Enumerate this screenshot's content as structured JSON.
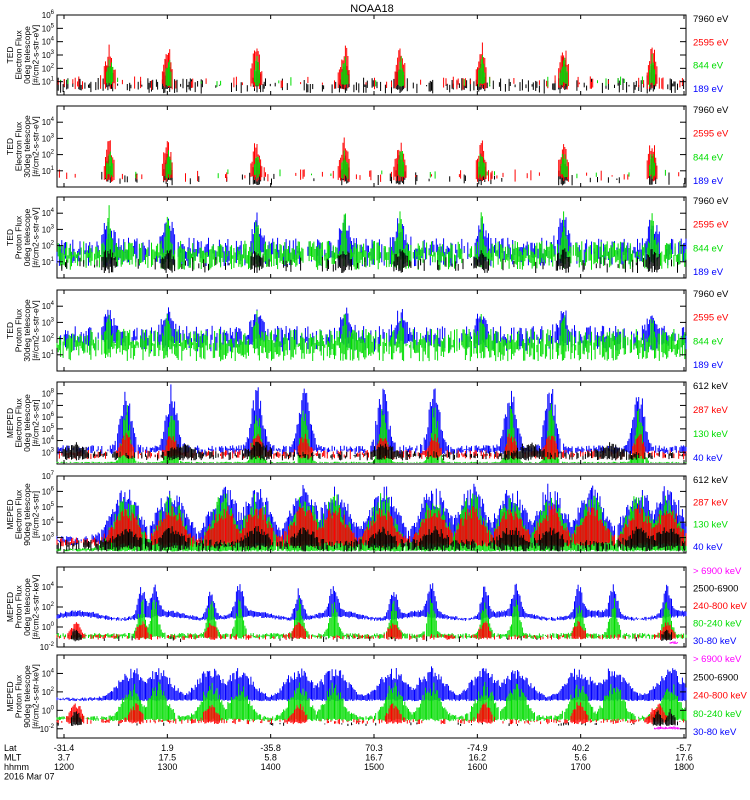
{
  "figure": {
    "title": "NOAA18",
    "footer": {
      "row_labels": [
        "Lat",
        "MLT",
        "hhmm"
      ],
      "date": "2016 Mar 07",
      "columns": [
        {
          "lat": "-31.4",
          "mlt": "3.7",
          "hhmm": "1200"
        },
        {
          "lat": "1.9",
          "mlt": "17.5",
          "hhmm": "1300"
        },
        {
          "lat": "-35.8",
          "mlt": "5.8",
          "hhmm": "1400"
        },
        {
          "lat": "70.3",
          "mlt": "16.7",
          "hhmm": "1500"
        },
        {
          "lat": "-74.9",
          "mlt": "16.2",
          "hhmm": "1600"
        },
        {
          "lat": "40.2",
          "mlt": "5.6",
          "hhmm": "1700"
        },
        {
          "lat": "-5.7",
          "mlt": "17.6",
          "hhmm": "1800"
        }
      ]
    }
  },
  "chart_data": [
    {
      "type": "scatter",
      "ylabel": [
        "TED",
        "Electron Flux",
        "0deg telescope",
        "[#/cm2-s-str-eV]"
      ],
      "yscale": "log",
      "ylim_exp": [
        0,
        6
      ],
      "tick_exps": [
        1,
        2,
        3,
        4,
        5,
        6
      ],
      "legend": [
        {
          "label": "7960 eV",
          "color": "#000000"
        },
        {
          "label": "2595 eV",
          "color": "#ff0000"
        },
        {
          "label": "844 eV",
          "color": "#00dd00"
        },
        {
          "label": "189 eV",
          "color": "#0000ff"
        }
      ],
      "series": [
        {
          "color": "#000000",
          "base": 0.7,
          "jitter": 0.6,
          "peak": 2.4,
          "pw": 0.006,
          "fill": 0.35,
          "spikes": [
            0.082,
            0.176,
            0.318,
            0.458,
            0.546,
            0.675,
            0.805,
            0.947
          ]
        },
        {
          "color": "#ff0000",
          "base": 0.9,
          "jitter": 0.5,
          "peak": 3.6,
          "pw": 0.008,
          "fill": 0.12,
          "spikes": [
            0.083,
            0.176,
            0.317,
            0.457,
            0.546,
            0.675,
            0.805,
            0.946
          ]
        },
        {
          "color": "#00dd00",
          "base": 1.0,
          "jitter": 0.4,
          "peak": 2.8,
          "pw": 0.005,
          "fill": 0.04,
          "spikes": [
            0.084,
            0.177,
            0.318,
            0.457,
            0.547,
            0.675,
            0.806,
            0.946
          ]
        }
      ]
    },
    {
      "type": "scatter",
      "ylabel": [
        "TED",
        "Electron Flux",
        "30deg telescope",
        "[#/cm2-s-str-eV]"
      ],
      "yscale": "log",
      "ylim_exp": [
        0,
        5
      ],
      "tick_exps": [
        1,
        2,
        3,
        4
      ],
      "legend": [
        {
          "label": "7960 eV",
          "color": "#000000"
        },
        {
          "label": "2595 eV",
          "color": "#ff0000"
        },
        {
          "label": "844 eV",
          "color": "#00dd00"
        },
        {
          "label": "189 eV",
          "color": "#0000ff"
        }
      ],
      "series": [
        {
          "color": "#000000",
          "base": 0.5,
          "jitter": 0.4,
          "peak": 2.0,
          "pw": 0.006,
          "fill": 0.1,
          "spikes": [
            0.082,
            0.176,
            0.318,
            0.458,
            0.546,
            0.675,
            0.805,
            0.947
          ]
        },
        {
          "color": "#ff0000",
          "base": 0.7,
          "jitter": 0.4,
          "peak": 2.8,
          "pw": 0.008,
          "fill": 0.08,
          "spikes": [
            0.083,
            0.176,
            0.317,
            0.457,
            0.546,
            0.675,
            0.805,
            0.946
          ]
        },
        {
          "color": "#00dd00",
          "base": 0.8,
          "jitter": 0.3,
          "peak": 2.2,
          "pw": 0.005,
          "fill": 0.03,
          "spikes": [
            0.084,
            0.177,
            0.318,
            0.457,
            0.547,
            0.675,
            0.806,
            0.946
          ]
        }
      ]
    },
    {
      "type": "scatter",
      "ylabel": [
        "TED",
        "Proton Flux",
        "0deg telescope",
        "[#/cm2-s-str-eV]"
      ],
      "yscale": "log",
      "ylim_exp": [
        0,
        5
      ],
      "tick_exps": [
        1,
        2,
        3,
        4
      ],
      "legend": [
        {
          "label": "7960 eV",
          "color": "#000000"
        },
        {
          "label": "2595 eV",
          "color": "#ff0000"
        },
        {
          "label": "844 eV",
          "color": "#00dd00"
        },
        {
          "label": "189 eV",
          "color": "#0000ff"
        }
      ],
      "series": [
        {
          "color": "#0000ff",
          "base": 1.6,
          "jitter": 0.9,
          "peak": 3.3,
          "pw": 0.01,
          "fill": 0.55,
          "spikes": [
            0.082,
            0.176,
            0.318,
            0.458,
            0.546,
            0.675,
            0.805,
            0.947
          ]
        },
        {
          "color": "#00dd00",
          "base": 1.4,
          "jitter": 0.9,
          "peak": 3.8,
          "pw": 0.004,
          "fill": 0.85,
          "spikes": [
            0.083,
            0.176,
            0.317,
            0.457,
            0.546,
            0.675,
            0.805,
            0.946
          ]
        },
        {
          "color": "#000000",
          "base": 0.8,
          "jitter": 0.5,
          "peak": 1.5,
          "pw": 0.01,
          "fill": 0.15,
          "spikes": [
            0.082,
            0.176,
            0.318,
            0.458,
            0.546,
            0.675,
            0.805,
            0.947
          ]
        }
      ]
    },
    {
      "type": "scatter",
      "ylabel": [
        "TED",
        "Proton Flux",
        "30deg telescope",
        "[#/cm2-s-str-eV]"
      ],
      "yscale": "log",
      "ylim_exp": [
        0,
        5
      ],
      "tick_exps": [
        1,
        2,
        3,
        4
      ],
      "legend": [
        {
          "label": "7960 eV",
          "color": "#000000"
        },
        {
          "label": "2595 eV",
          "color": "#ff0000"
        },
        {
          "label": "844 eV",
          "color": "#00dd00"
        },
        {
          "label": "189 eV",
          "color": "#0000ff"
        }
      ],
      "series": [
        {
          "color": "#0000ff",
          "base": 2.0,
          "jitter": 0.8,
          "peak": 3.4,
          "pw": 0.01,
          "fill": 0.6,
          "spikes": [
            0.082,
            0.176,
            0.318,
            0.458,
            0.546,
            0.675,
            0.805,
            0.947
          ]
        },
        {
          "color": "#00dd00",
          "base": 1.6,
          "jitter": 1.0,
          "peak": 3.2,
          "pw": 0.004,
          "fill": 0.85,
          "spikes": [
            0.083,
            0.176,
            0.317,
            0.457,
            0.546,
            0.675,
            0.805,
            0.946
          ]
        }
      ]
    },
    {
      "type": "scatter",
      "ylabel": [
        "MEPED",
        "Electron Flux",
        "0deg telescope",
        "[#/cm2-s-str]"
      ],
      "yscale": "log",
      "ylim_exp": [
        2,
        9
      ],
      "tick_exps": [
        3,
        4,
        5,
        6,
        7,
        8
      ],
      "legend": [
        {
          "label": "612 keV",
          "color": "#000000"
        },
        {
          "label": "287 keV",
          "color": "#ff0000"
        },
        {
          "label": "130 keV",
          "color": "#00dd00"
        },
        {
          "label": "40 keV",
          "color": "#0000ff"
        }
      ],
      "series": [
        {
          "color": "#0000ff",
          "base": 3.2,
          "jitter": 0.4,
          "peak": 8.6,
          "pw": 0.012,
          "fill": 0.8,
          "spikes": [
            0.11,
            0.182,
            0.318,
            0.393,
            0.518,
            0.6,
            0.722,
            0.785,
            0.925
          ]
        },
        {
          "color": "#00dd00",
          "base": 2.1,
          "jitter": 0.1,
          "peak": 7.5,
          "pw": 0.008,
          "fill": 0.9,
          "spikes": [
            0.11,
            0.182,
            0.318,
            0.393,
            0.518,
            0.6,
            0.722,
            0.785,
            0.925
          ]
        },
        {
          "color": "#ff0000",
          "base": 2.8,
          "jitter": 0.4,
          "peak": 4.5,
          "pw": 0.01,
          "fill": 0.5,
          "spikes": [
            0.11,
            0.182,
            0.318,
            0.393,
            0.518,
            0.6,
            0.722,
            0.785,
            0.925
          ]
        },
        {
          "color": "#000000",
          "base": 2.7,
          "jitter": 0.4,
          "peak": 3.6,
          "pw": 0.02,
          "fill": 0.45,
          "spikes": [
            0.03,
            0.2,
            0.32,
            0.52,
            0.75,
            0.88
          ]
        }
      ]
    },
    {
      "type": "scatter",
      "ylabel": [
        "MEPED",
        "Electron Flux",
        "90deg telescope",
        "[#/cm2-s-str]"
      ],
      "yscale": "log",
      "ylim_exp": [
        2,
        7
      ],
      "tick_exps": [
        3,
        4,
        5,
        6,
        7
      ],
      "legend": [
        {
          "label": "612 keV",
          "color": "#000000"
        },
        {
          "label": "287 keV",
          "color": "#ff0000"
        },
        {
          "label": "130 keV",
          "color": "#00dd00"
        },
        {
          "label": "40 keV",
          "color": "#0000ff"
        }
      ],
      "series": [
        {
          "color": "#0000ff",
          "base": 2.8,
          "jitter": 0.3,
          "peak": 6.3,
          "pw": 0.03,
          "fill": 0.7,
          "spikes": [
            0.11,
            0.182,
            0.265,
            0.318,
            0.393,
            0.442,
            0.518,
            0.6,
            0.66,
            0.722,
            0.785,
            0.85,
            0.925,
            0.97
          ]
        },
        {
          "color": "#00dd00",
          "base": 2.2,
          "jitter": 0.1,
          "peak": 5.9,
          "pw": 0.028,
          "fill": 0.8,
          "spikes": [
            0.11,
            0.182,
            0.265,
            0.318,
            0.393,
            0.442,
            0.518,
            0.6,
            0.66,
            0.722,
            0.785,
            0.85,
            0.925,
            0.97
          ]
        },
        {
          "color": "#ff0000",
          "base": 2.7,
          "jitter": 0.3,
          "peak": 5.0,
          "pw": 0.024,
          "fill": 0.6,
          "spikes": [
            0.11,
            0.182,
            0.265,
            0.318,
            0.393,
            0.442,
            0.518,
            0.6,
            0.66,
            0.722,
            0.785,
            0.85,
            0.925,
            0.97
          ]
        },
        {
          "color": "#000000",
          "base": 2.5,
          "jitter": 0.4,
          "peak": 3.5,
          "pw": 0.02,
          "fill": 0.6,
          "spikes": [
            0.11,
            0.182,
            0.318,
            0.393,
            0.518,
            0.6,
            0.722,
            0.785,
            0.925,
            0.97
          ]
        }
      ]
    },
    {
      "type": "scatter",
      "ylabel": [
        "MEPED",
        "Proton Flux",
        "0deg telescope",
        "[#/cm2-s-str-keV]"
      ],
      "yscale": "log",
      "ylim_exp": [
        -2,
        6
      ],
      "tick_exps": [
        -2,
        0,
        2,
        4
      ],
      "legend": [
        {
          "label": "> 6900 keV",
          "color": "#ff00ff"
        },
        {
          "label": "2500-6900",
          "color": "#000000"
        },
        {
          "label": "240-800 keV",
          "color": "#ff0000"
        },
        {
          "label": "80-240 keV",
          "color": "#00dd00"
        },
        {
          "label": "30-80 keV",
          "color": "#0000ff"
        }
      ],
      "series": [
        {
          "color": "#0000ff",
          "base": 0.8,
          "jitter": 0.2,
          "peak": 4.0,
          "pw": 0.008,
          "fill": 1.0,
          "hump": 0.7,
          "spikes": [
            0.135,
            0.155,
            0.245,
            0.29,
            0.385,
            0.44,
            0.535,
            0.595,
            0.68,
            0.73,
            0.83,
            0.885,
            0.97
          ]
        },
        {
          "color": "#00dd00",
          "base": -0.9,
          "jitter": 0.3,
          "peak": 2.8,
          "pw": 0.008,
          "fill": 0.9,
          "spikes": [
            0.135,
            0.155,
            0.245,
            0.29,
            0.385,
            0.44,
            0.535,
            0.595,
            0.68,
            0.73,
            0.83,
            0.885,
            0.97
          ]
        },
        {
          "color": "#ff0000",
          "base": -1.0,
          "jitter": 0.3,
          "peak": 0.5,
          "pw": 0.01,
          "fill": 0.35,
          "spikes": [
            0.03,
            0.135,
            0.245,
            0.385,
            0.535,
            0.68,
            0.83,
            0.97
          ]
        },
        {
          "color": "#000000",
          "base": -1.2,
          "jitter": 0.3,
          "peak": -0.3,
          "pw": 0.008,
          "fill": 0.05,
          "spikes": [
            0.03,
            0.97
          ]
        },
        {
          "color": "#ff00ff",
          "base": -1.6,
          "jitter": 0.1,
          "peak": -1.5,
          "pw": 0.006,
          "fill": 0.0,
          "spikes": [
            0.98
          ]
        }
      ]
    },
    {
      "type": "scatter",
      "ylabel": [
        "MEPED",
        "Proton Flux",
        "90deg telescope",
        "[#/cm2-s-str-keV]"
      ],
      "yscale": "log",
      "ylim_exp": [
        -3,
        6
      ],
      "tick_exps": [
        -2,
        0,
        2,
        4
      ],
      "legend": [
        {
          "label": "> 6900 keV",
          "color": "#ff00ff"
        },
        {
          "label": "2500-6900",
          "color": "#000000"
        },
        {
          "label": "240-800 keV",
          "color": "#ff0000"
        },
        {
          "label": "80-240 keV",
          "color": "#00dd00"
        },
        {
          "label": "30-80 keV",
          "color": "#0000ff"
        }
      ],
      "series": [
        {
          "color": "#0000ff",
          "base": 1.2,
          "jitter": 0.2,
          "peak": 4.6,
          "pw": 0.03,
          "fill": 1.0,
          "spikes": [
            0.12,
            0.16,
            0.245,
            0.29,
            0.385,
            0.44,
            0.535,
            0.595,
            0.68,
            0.73,
            0.83,
            0.885,
            0.975
          ]
        },
        {
          "color": "#00dd00",
          "base": -0.9,
          "jitter": 0.3,
          "peak": 3.0,
          "pw": 0.02,
          "fill": 0.9,
          "spikes": [
            0.12,
            0.16,
            0.245,
            0.29,
            0.385,
            0.44,
            0.535,
            0.595,
            0.68,
            0.73,
            0.83,
            0.885,
            0.975
          ]
        },
        {
          "color": "#ff0000",
          "base": -1.2,
          "jitter": 0.3,
          "peak": 0.8,
          "pw": 0.012,
          "fill": 0.35,
          "spikes": [
            0.03,
            0.125,
            0.245,
            0.385,
            0.535,
            0.68,
            0.83,
            0.955
          ]
        },
        {
          "color": "#000000",
          "base": -1.5,
          "jitter": 0.2,
          "peak": 0.0,
          "pw": 0.008,
          "fill": 0.05,
          "spikes": [
            0.03,
            0.955,
            0.975
          ]
        },
        {
          "color": "#ff00ff",
          "base": -2.0,
          "jitter": 0.1,
          "peak": -1.8,
          "pw": 0.01,
          "fill": 0.0,
          "spikes": [
            0.96,
            0.98
          ]
        }
      ]
    }
  ]
}
